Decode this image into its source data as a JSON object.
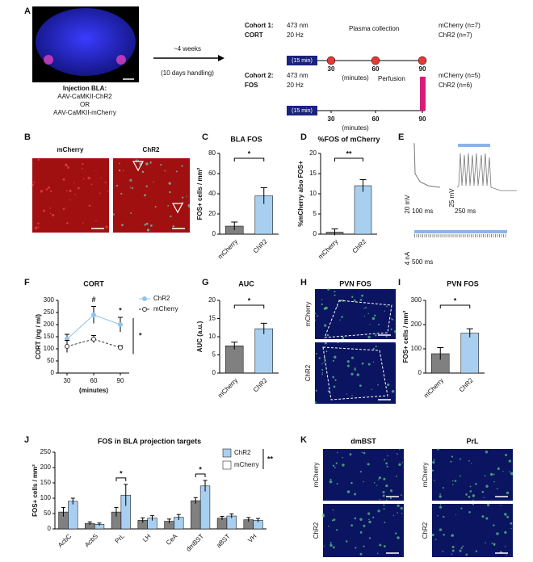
{
  "panel_labels": [
    "A",
    "B",
    "C",
    "D",
    "E",
    "F",
    "G",
    "H",
    "I",
    "J",
    "K"
  ],
  "panel_a": {
    "injection": [
      "Injection BLA:",
      "AAV-CaMKII-ChR2",
      "OR",
      "AAV-CaMKII-mCherry"
    ],
    "arrow_top": "~4 weeks",
    "arrow_bottom": "(10 days handling)",
    "cohorts": [
      {
        "name": "Cohort 1:",
        "measure": "CORT",
        "laser": [
          "473 nm",
          "20 Hz"
        ],
        "event": "Plasma collection",
        "groups": [
          "mCherry (n=7)",
          "ChR2 (n=7)"
        ],
        "stim": "(15 min)",
        "ticks": [
          "30",
          "60",
          "90"
        ],
        "axis": "(minutes)"
      },
      {
        "name": "Cohort 2:",
        "measure": "FOS",
        "laser": [
          "473 nm",
          "20 Hz"
        ],
        "event": "Perfusion",
        "groups": [
          "mCherry (n=5)",
          "ChR2 (n=6)"
        ],
        "stim": "(15 min)",
        "ticks": [
          "30",
          "60",
          "90"
        ],
        "axis": "(minutes)"
      }
    ]
  },
  "panel_b": {
    "columns": [
      "mCherry",
      "ChR2"
    ]
  },
  "panel_e": {
    "scales": [
      "20 mV",
      "100 ms",
      "25 mV",
      "250 ms",
      "4 nA",
      "500 ms"
    ]
  },
  "panel_h": {
    "title": "PVN FOS",
    "rows": [
      "mCherry",
      "ChR2"
    ]
  },
  "panel_k": {
    "columns": [
      "dmBST",
      "PrL"
    ],
    "rows": [
      "mCherry",
      "ChR2"
    ]
  },
  "chart_data": [
    {
      "type": "bar",
      "title": "BLA FOS",
      "ylabel": "FOS+ cells / mm²",
      "categories": [
        "mCherry",
        "ChR2"
      ],
      "values": [
        8,
        38
      ],
      "errors": [
        4,
        8
      ],
      "colors": [
        "#808080",
        "#a9cff0"
      ],
      "ylim": [
        0,
        80
      ],
      "yticks": [
        0,
        20,
        40,
        60,
        80
      ],
      "annotations": [
        "*"
      ]
    },
    {
      "type": "bar",
      "title": "%FOS of mCherry",
      "ylabel": "%mCherry also FOS+",
      "categories": [
        "mCherry",
        "ChR2"
      ],
      "values": [
        0.5,
        12
      ],
      "errors": [
        0.8,
        1.5
      ],
      "colors": [
        "#808080",
        "#a9cff0"
      ],
      "ylim": [
        0,
        20
      ],
      "yticks": [
        0,
        5,
        10,
        15,
        20
      ],
      "annotations": [
        "**"
      ]
    },
    {
      "type": "line",
      "title": "CORT",
      "ylabel": "CORT (ng / ml)",
      "xlabel": "(minutes)",
      "x": [
        30,
        60,
        90
      ],
      "xlim": [
        20,
        100
      ],
      "xticks": [
        30,
        60,
        90
      ],
      "ylim": [
        0,
        300
      ],
      "yticks": [
        0,
        50,
        100,
        150,
        200,
        250,
        300
      ],
      "series": [
        {
          "name": "ChR2",
          "color": "#8ec3ee",
          "dashed": false,
          "values": [
            140,
            240,
            200
          ],
          "errors": [
            20,
            35,
            30
          ]
        },
        {
          "name": "mCherry",
          "color": "#333333",
          "dashed": true,
          "values": [
            110,
            140,
            105
          ],
          "errors": [
            25,
            15,
            8
          ]
        }
      ],
      "annotations": [
        "#",
        "*",
        "*"
      ]
    },
    {
      "type": "bar",
      "title": "AUC",
      "ylabel": "AUC (a.u.)",
      "categories": [
        "mCherry",
        "ChR2"
      ],
      "values": [
        7.5,
        12.2
      ],
      "errors": [
        1,
        1.5
      ],
      "colors": [
        "#808080",
        "#a9cff0"
      ],
      "ylim": [
        0,
        20
      ],
      "yticks": [
        0,
        5,
        10,
        15,
        20
      ],
      "annotations": [
        "*"
      ]
    },
    {
      "type": "bar",
      "title": "PVN FOS",
      "ylabel": "FOS+ cells / mm²",
      "categories": [
        "mCherry",
        "ChR2"
      ],
      "values": [
        80,
        165
      ],
      "errors": [
        25,
        18
      ],
      "colors": [
        "#808080",
        "#a9cff0"
      ],
      "ylim": [
        0,
        300
      ],
      "yticks": [
        0,
        100,
        200,
        300
      ],
      "annotations": [
        "*"
      ]
    },
    {
      "type": "grouped_bar",
      "title": "FOS in BLA projection targets",
      "ylabel": "FOS+ cells / mm²",
      "categories": [
        "AcbC",
        "AcbS",
        "PrL",
        "LH",
        "CeA",
        "dmBST",
        "aBST",
        "VH"
      ],
      "ylim": [
        0,
        250
      ],
      "yticks": [
        0,
        50,
        100,
        150,
        200,
        250
      ],
      "series": [
        {
          "name": "ChR2",
          "color": "#a9cff0",
          "values": [
            90,
            15,
            110,
            35,
            38,
            140,
            42,
            28
          ],
          "errors": [
            10,
            4,
            35,
            8,
            9,
            18,
            7,
            6
          ]
        },
        {
          "name": "mCherry",
          "color": "#808080",
          "values": [
            55,
            18,
            55,
            28,
            25,
            92,
            35,
            30
          ],
          "errors": [
            15,
            5,
            15,
            8,
            7,
            10,
            6,
            7
          ]
        }
      ],
      "annotations": [
        "*",
        "*",
        "**"
      ]
    }
  ]
}
